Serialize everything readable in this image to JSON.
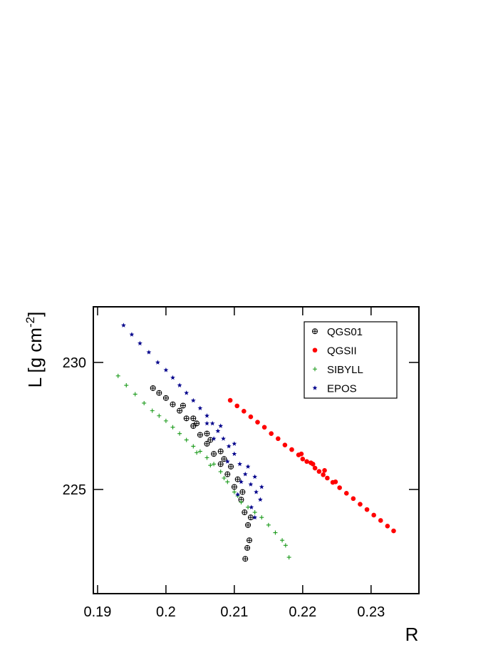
{
  "chart_data": {
    "type": "scatter",
    "xlabel": "R",
    "ylabel_parts": [
      "L [g cm",
      "-2",
      "]"
    ],
    "xlim": [
      0.18938,
      0.237
    ],
    "ylim": [
      220.9,
      232.19
    ],
    "xticks": [
      0.19,
      0.2,
      0.21,
      0.22,
      0.23
    ],
    "yticks": [
      225,
      230
    ],
    "legend": "top-right",
    "series": [
      {
        "name": "QGS01",
        "color": "#000000",
        "marker": "circle-cross",
        "x": [
          0.1981,
          0.199,
          0.2,
          0.201,
          0.202,
          0.203,
          0.204,
          0.205,
          0.206,
          0.207,
          0.208,
          0.209,
          0.21,
          0.211,
          0.2115,
          0.212,
          0.2122,
          0.2119,
          0.2116,
          0.204,
          0.206,
          0.208,
          0.2025,
          0.2045,
          0.2065,
          0.2085,
          0.2095,
          0.2105,
          0.2112,
          0.2124
        ],
        "y": [
          228.99,
          228.8,
          228.6,
          228.35,
          228.1,
          227.8,
          227.5,
          227.15,
          226.8,
          226.4,
          226.0,
          225.6,
          225.1,
          224.6,
          224.1,
          223.6,
          223.0,
          222.7,
          222.27,
          227.8,
          227.2,
          226.5,
          228.3,
          227.6,
          226.95,
          226.2,
          225.9,
          225.4,
          224.9,
          223.9
        ]
      },
      {
        "name": "QGSII",
        "color": "#ff0000",
        "marker": "circle",
        "x": [
          0.2094,
          0.2104,
          0.2114,
          0.2124,
          0.2134,
          0.2144,
          0.2154,
          0.2164,
          0.2174,
          0.2184,
          0.2194,
          0.22,
          0.2206,
          0.2212,
          0.2218,
          0.2224,
          0.223,
          0.2236,
          0.2244,
          0.2254,
          0.2264,
          0.2274,
          0.2284,
          0.2294,
          0.2304,
          0.2314,
          0.2324,
          0.2333,
          0.2198,
          0.2215,
          0.2232,
          0.2248
        ],
        "y": [
          228.51,
          228.29,
          228.08,
          227.86,
          227.65,
          227.45,
          227.2,
          227.0,
          226.75,
          226.57,
          226.36,
          226.2,
          226.1,
          226.05,
          225.84,
          225.71,
          225.58,
          225.45,
          225.28,
          225.07,
          224.85,
          224.64,
          224.42,
          224.21,
          223.99,
          223.78,
          223.56,
          223.37,
          226.4,
          226.0,
          225.75,
          225.3
        ]
      },
      {
        "name": "SIBYLL",
        "color": "#1a9a1a",
        "marker": "plus",
        "x": [
          0.193,
          0.1942,
          0.1955,
          0.1968,
          0.198,
          0.199,
          0.2,
          0.201,
          0.202,
          0.203,
          0.204,
          0.205,
          0.206,
          0.207,
          0.208,
          0.209,
          0.21,
          0.211,
          0.212,
          0.213,
          0.214,
          0.215,
          0.216,
          0.217,
          0.2175,
          0.218,
          0.2045,
          0.2065,
          0.2085,
          0.2105
        ],
        "y": [
          229.47,
          229.1,
          228.75,
          228.4,
          228.1,
          227.9,
          227.7,
          227.45,
          227.2,
          226.95,
          226.7,
          226.5,
          226.25,
          226.0,
          225.7,
          225.3,
          224.9,
          224.5,
          224.3,
          224.1,
          223.9,
          223.6,
          223.3,
          223.0,
          222.8,
          222.33,
          226.45,
          225.95,
          225.45,
          224.75
        ]
      },
      {
        "name": "EPOS",
        "color": "#00008b",
        "marker": "star",
        "x": [
          0.1938,
          0.195,
          0.1962,
          0.1975,
          0.1988,
          0.2,
          0.201,
          0.202,
          0.203,
          0.204,
          0.205,
          0.206,
          0.2068,
          0.2076,
          0.2084,
          0.2092,
          0.21,
          0.2108,
          0.2116,
          0.2124,
          0.2132,
          0.2138,
          0.208,
          0.21,
          0.212,
          0.213,
          0.214,
          0.206,
          0.207,
          0.209,
          0.211,
          0.2105,
          0.2125,
          0.213
        ],
        "y": [
          231.46,
          231.1,
          230.75,
          230.4,
          230.0,
          229.7,
          229.4,
          229.1,
          228.8,
          228.5,
          228.2,
          227.9,
          227.6,
          227.3,
          227.0,
          226.7,
          226.4,
          226.0,
          225.6,
          225.2,
          224.9,
          224.6,
          227.5,
          226.8,
          225.9,
          225.5,
          225.1,
          227.6,
          227.0,
          226.1,
          225.3,
          224.8,
          224.3,
          223.9
        ]
      }
    ]
  }
}
